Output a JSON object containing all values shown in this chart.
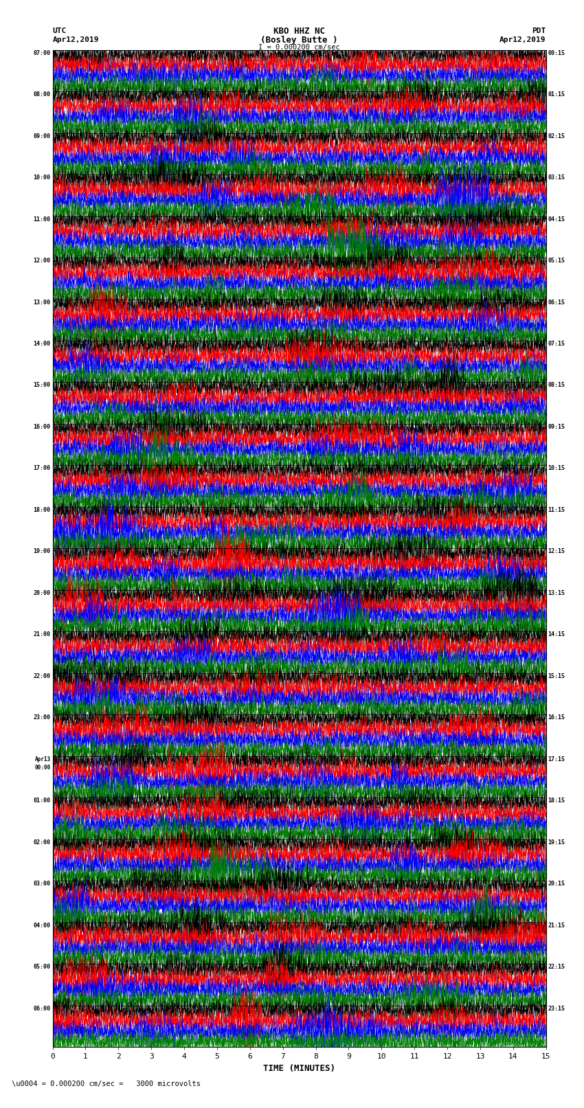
{
  "title_line1": "KBO HHZ NC",
  "title_line2": "(Bosley Butte )",
  "scale_label": "I = 0.000200 cm/sec",
  "left_header1": "UTC",
  "left_header2": "Apr12,2019",
  "right_header1": "PDT",
  "right_header2": "Apr12,2019",
  "xlabel": "TIME (MINUTES)",
  "footer": "\\u0004 = 0.000200 cm/sec =   3000 microvolts",
  "x_ticks": [
    0,
    1,
    2,
    3,
    4,
    5,
    6,
    7,
    8,
    9,
    10,
    11,
    12,
    13,
    14,
    15
  ],
  "left_times": [
    "07:00",
    "08:00",
    "09:00",
    "10:00",
    "11:00",
    "12:00",
    "13:00",
    "14:00",
    "15:00",
    "16:00",
    "17:00",
    "18:00",
    "19:00",
    "20:00",
    "21:00",
    "22:00",
    "23:00",
    "Apr13\n00:00",
    "01:00",
    "02:00",
    "03:00",
    "04:00",
    "05:00",
    "06:00"
  ],
  "right_times": [
    "00:15",
    "01:15",
    "02:15",
    "03:15",
    "04:15",
    "05:15",
    "06:15",
    "07:15",
    "08:15",
    "09:15",
    "10:15",
    "11:15",
    "12:15",
    "13:15",
    "14:15",
    "15:15",
    "16:15",
    "17:15",
    "18:15",
    "19:15",
    "20:15",
    "21:15",
    "22:15",
    "23:15"
  ],
  "n_rows": 24,
  "colors": [
    "black",
    "red",
    "blue",
    "green"
  ],
  "bg_color": "white",
  "fig_width": 8.5,
  "fig_height": 16.13,
  "dpi": 100
}
